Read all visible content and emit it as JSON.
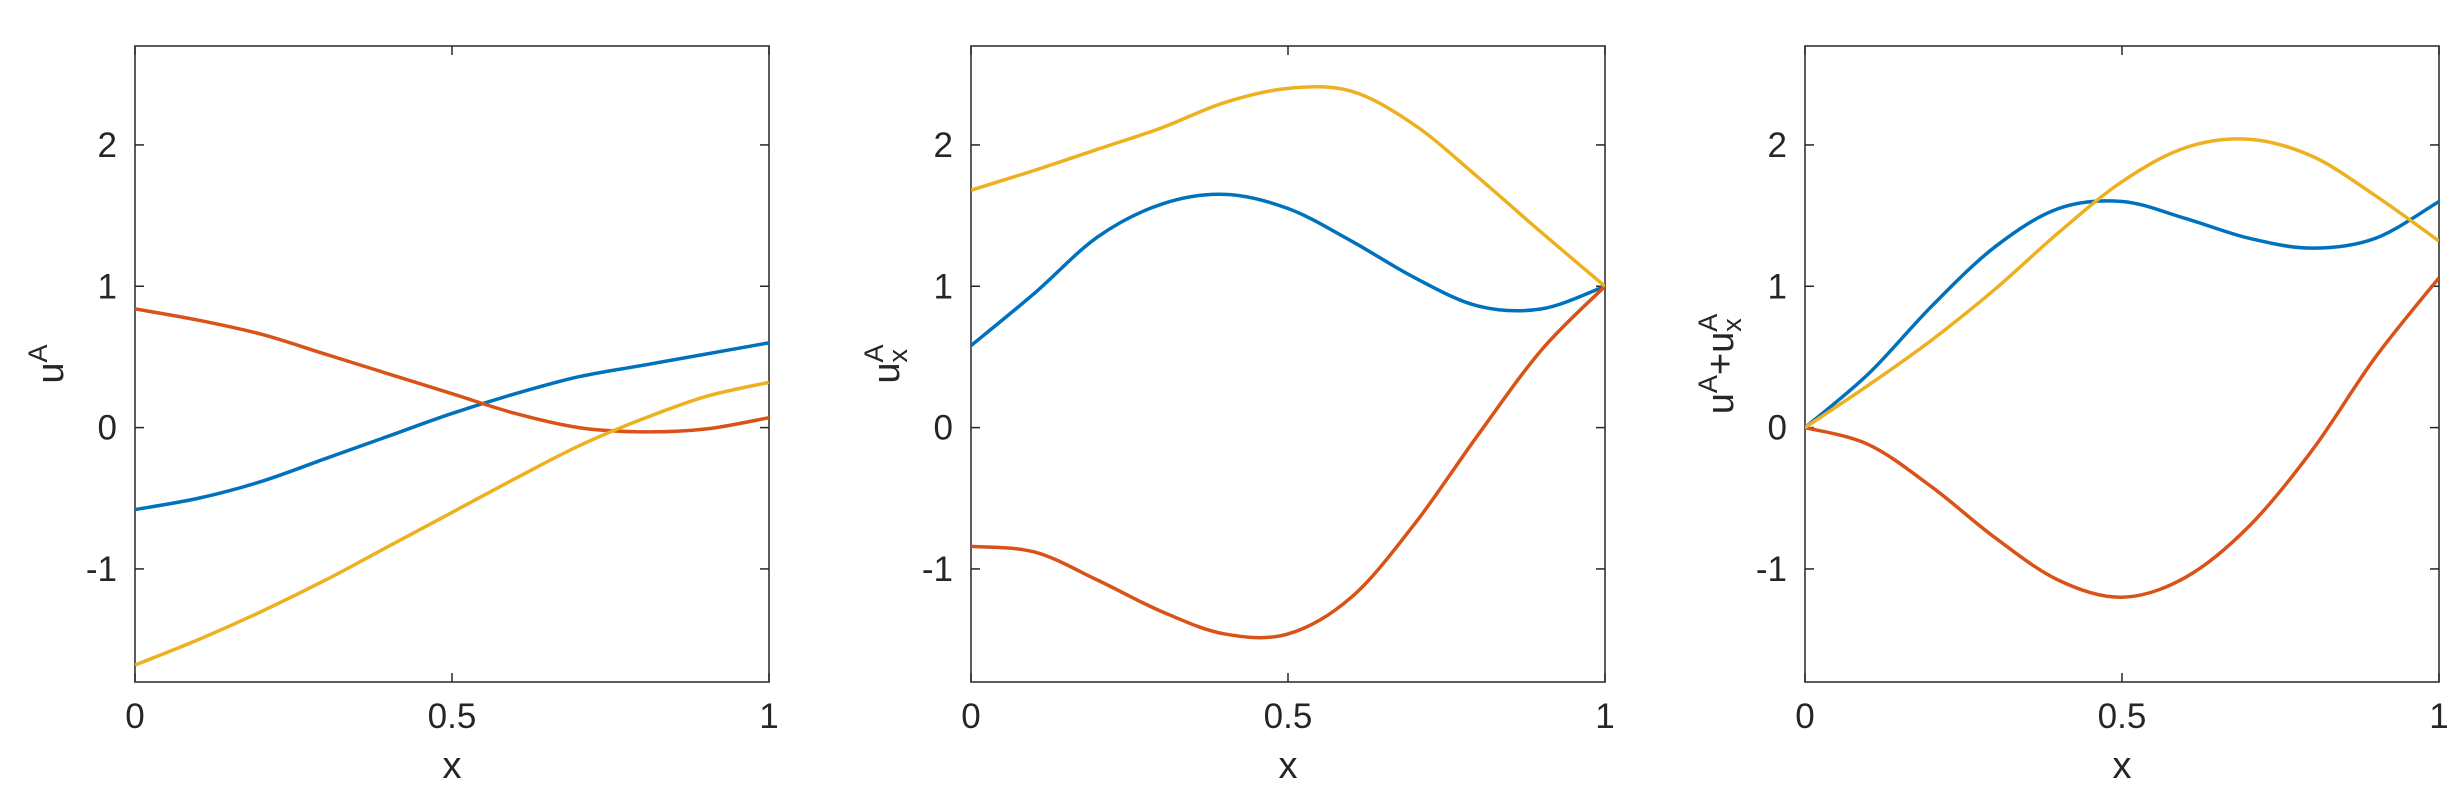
{
  "chart_data": [
    {
      "type": "line",
      "x": [
        0,
        0.1,
        0.2,
        0.3,
        0.4,
        0.5,
        0.6,
        0.7,
        0.8,
        0.9,
        1
      ],
      "series": [
        {
          "color": "#0072bd",
          "values": [
            -0.58,
            -0.5,
            -0.38,
            -0.22,
            -0.06,
            0.1,
            0.24,
            0.36,
            0.44,
            0.52,
            0.6
          ]
        },
        {
          "color": "#d95319",
          "values": [
            0.84,
            0.76,
            0.66,
            0.52,
            0.38,
            0.24,
            0.1,
            0.0,
            -0.03,
            -0.01,
            0.07
          ]
        },
        {
          "color": "#edb120",
          "values": [
            -1.68,
            -1.5,
            -1.3,
            -1.08,
            -0.84,
            -0.6,
            -0.36,
            -0.13,
            0.06,
            0.22,
            0.32
          ]
        }
      ],
      "xlim": [
        0,
        1
      ],
      "ylim": [
        -1.8,
        2.7
      ],
      "xticks": [
        0,
        0.5,
        1
      ],
      "yticks": [
        -1,
        0,
        1,
        2
      ],
      "xlabel": "x",
      "ylabel": [
        {
          "text": "u"
        },
        {
          "text": "A",
          "pos": "sup"
        }
      ]
    },
    {
      "type": "line",
      "x": [
        0,
        0.1,
        0.2,
        0.3,
        0.4,
        0.5,
        0.6,
        0.7,
        0.8,
        0.9,
        1
      ],
      "series": [
        {
          "color": "#0072bd",
          "values": [
            0.58,
            0.95,
            1.35,
            1.58,
            1.65,
            1.55,
            1.32,
            1.06,
            0.86,
            0.84,
            1.0
          ]
        },
        {
          "color": "#d95319",
          "values": [
            -0.84,
            -0.88,
            -1.08,
            -1.3,
            -1.46,
            -1.46,
            -1.2,
            -0.68,
            -0.05,
            0.55,
            1.0
          ]
        },
        {
          "color": "#edb120",
          "values": [
            1.68,
            1.82,
            1.97,
            2.12,
            2.3,
            2.4,
            2.38,
            2.14,
            1.77,
            1.38,
            1.0
          ]
        }
      ],
      "xlim": [
        0,
        1
      ],
      "ylim": [
        -1.8,
        2.7
      ],
      "xticks": [
        0,
        0.5,
        1
      ],
      "yticks": [
        -1,
        0,
        1,
        2
      ],
      "xlabel": "x",
      "ylabel": [
        {
          "text": "u"
        },
        {
          "text": "A",
          "pos": "sup"
        },
        {
          "text": "x",
          "pos": "sub"
        }
      ]
    },
    {
      "type": "line",
      "x": [
        0,
        0.1,
        0.2,
        0.3,
        0.4,
        0.5,
        0.6,
        0.7,
        0.8,
        0.9,
        1
      ],
      "series": [
        {
          "color": "#0072bd",
          "values": [
            0,
            0.38,
            0.86,
            1.28,
            1.55,
            1.6,
            1.48,
            1.34,
            1.27,
            1.34,
            1.6
          ]
        },
        {
          "color": "#d95319",
          "values": [
            0,
            -0.12,
            -0.42,
            -0.78,
            -1.08,
            -1.2,
            -1.06,
            -0.7,
            -0.16,
            0.5,
            1.06
          ]
        },
        {
          "color": "#edb120",
          "values": [
            0,
            0.3,
            0.62,
            0.98,
            1.38,
            1.74,
            1.98,
            2.04,
            1.92,
            1.64,
            1.32
          ]
        }
      ],
      "xlim": [
        0,
        1
      ],
      "ylim": [
        -1.8,
        2.7
      ],
      "xticks": [
        0,
        0.5,
        1
      ],
      "yticks": [
        -1,
        0,
        1,
        2
      ],
      "xlabel": "x",
      "ylabel": [
        {
          "text": "u"
        },
        {
          "text": "A",
          "pos": "sup"
        },
        {
          "text": "+"
        },
        {
          "text": "u"
        },
        {
          "text": "A",
          "pos": "sup"
        },
        {
          "text": "x",
          "pos": "sub"
        }
      ]
    }
  ]
}
